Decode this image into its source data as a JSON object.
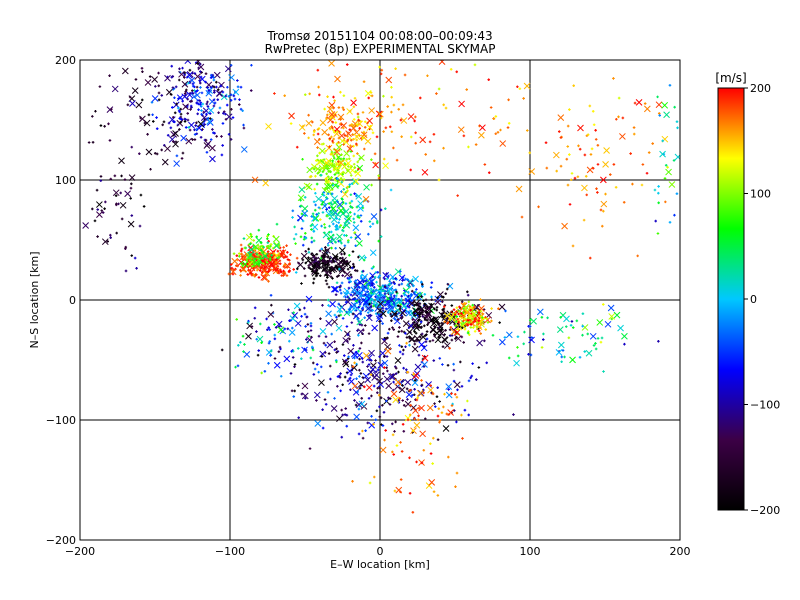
{
  "chart_data": {
    "type": "scatter",
    "title": "Tromsø 20151104 00:08:00–00:09:43",
    "subtitle": "RwPretec (8p) EXPERIMENTAL SKYMAP",
    "xlabel": "E–W location [km]",
    "ylabel": "N–S location [km]",
    "xlim": [
      -200,
      200
    ],
    "ylim": [
      -200,
      200
    ],
    "xticks": [
      -200,
      -100,
      0,
      100,
      200
    ],
    "yticks": [
      -200,
      -100,
      0,
      100,
      200
    ],
    "grid": true,
    "markers": [
      "x",
      "+"
    ],
    "colorbar": {
      "label": "[m/s]",
      "range": [
        -200,
        200
      ],
      "ticks": [
        200,
        100,
        0,
        -100,
        -200
      ],
      "colormap": "rainbow",
      "stops": [
        "#000000",
        "#3c0046",
        "#0000ff",
        "#00c8ff",
        "#00ff00",
        "#ffff00",
        "#ff0000"
      ]
    },
    "clusters": [
      {
        "x": -120,
        "y": 165,
        "sx": 20,
        "sy": 28,
        "n": 240,
        "v": -80,
        "vs": 55
      },
      {
        "x": -150,
        "y": 160,
        "sx": 30,
        "sy": 35,
        "n": 90,
        "v": -160,
        "vs": 40
      },
      {
        "x": -175,
        "y": 80,
        "sx": 15,
        "sy": 45,
        "n": 50,
        "v": -150,
        "vs": 60
      },
      {
        "x": -30,
        "y": 110,
        "sx": 12,
        "sy": 12,
        "n": 160,
        "v": 110,
        "vs": 25
      },
      {
        "x": -25,
        "y": 140,
        "sx": 15,
        "sy": 15,
        "n": 110,
        "v": 160,
        "vs": 30
      },
      {
        "x": -30,
        "y": 70,
        "sx": 22,
        "sy": 22,
        "n": 220,
        "v": 20,
        "vs": 60
      },
      {
        "x": -78,
        "y": 32,
        "sx": 13,
        "sy": 9,
        "n": 260,
        "v": 190,
        "vs": 25
      },
      {
        "x": -80,
        "y": 42,
        "sx": 10,
        "sy": 10,
        "n": 90,
        "v": 80,
        "vs": 40
      },
      {
        "x": -35,
        "y": 30,
        "sx": 14,
        "sy": 10,
        "n": 160,
        "v": -180,
        "vs": 40
      },
      {
        "x": 0,
        "y": 3,
        "sx": 22,
        "sy": 14,
        "n": 420,
        "v": -30,
        "vs": 60
      },
      {
        "x": 35,
        "y": -15,
        "sx": 25,
        "sy": 15,
        "n": 260,
        "v": -175,
        "vs": 40
      },
      {
        "x": 60,
        "y": -15,
        "sx": 10,
        "sy": 8,
        "n": 180,
        "v": 150,
        "vs": 60
      },
      {
        "x": 0,
        "y": -60,
        "sx": 45,
        "sy": 35,
        "n": 320,
        "v": -110,
        "vs": 70
      },
      {
        "x": 20,
        "y": -100,
        "sx": 30,
        "sy": 40,
        "n": 100,
        "v": 170,
        "vs": 30
      },
      {
        "x": 120,
        "y": -30,
        "sx": 35,
        "sy": 20,
        "n": 70,
        "v": 30,
        "vs": 80
      },
      {
        "x": 140,
        "y": 120,
        "sx": 40,
        "sy": 50,
        "n": 90,
        "v": 170,
        "vs": 30
      },
      {
        "x": 10,
        "y": 150,
        "sx": 60,
        "sy": 40,
        "n": 150,
        "v": 170,
        "vs": 40
      },
      {
        "x": -60,
        "y": -30,
        "sx": 30,
        "sy": 25,
        "n": 120,
        "v": -60,
        "vs": 100
      },
      {
        "x": 190,
        "y": 110,
        "sx": 8,
        "sy": 50,
        "n": 30,
        "v": 50,
        "vs": 150
      }
    ]
  }
}
